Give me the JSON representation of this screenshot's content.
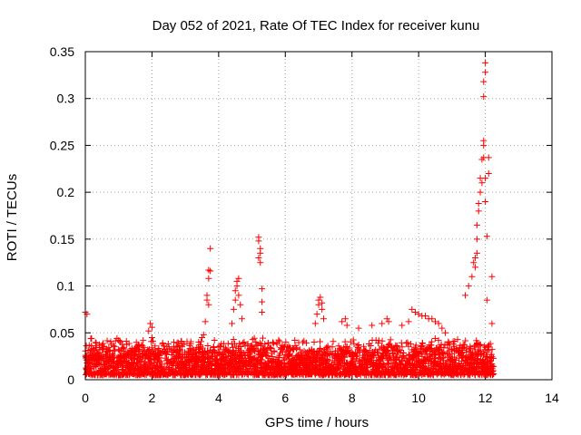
{
  "chart_data": {
    "type": "scatter",
    "title": "Day 052 of 2021, Rate Of TEC Index for receiver kunu",
    "xlabel": "GPS time / hours",
    "ylabel": "ROTI / TECUs",
    "xlim": [
      0,
      14
    ],
    "ylim": [
      0,
      0.35
    ],
    "x_ticks": [
      "0",
      "2",
      "4",
      "6",
      "8",
      "10",
      "12",
      "14"
    ],
    "y_ticks": [
      "0",
      "0.05",
      "0.1",
      "0.15",
      "0.2",
      "0.25",
      "0.3",
      "0.35"
    ],
    "grid": true,
    "marker": "+",
    "marker_color": "#ff0000",
    "x_data_range": [
      0,
      12.25
    ],
    "baseline_band": [
      0.005,
      0.03
    ],
    "series": [
      {
        "points": [
          [
            0.0,
            0.072
          ],
          [
            0.05,
            0.07
          ],
          [
            0.05,
            0.012
          ],
          [
            0.1,
            0.008
          ],
          [
            0.95,
            0.044
          ],
          [
            1.0,
            0.042
          ],
          [
            1.05,
            0.04
          ],
          [
            1.1,
            0.038
          ],
          [
            1.9,
            0.052
          ],
          [
            1.95,
            0.06
          ],
          [
            2.0,
            0.056
          ],
          [
            2.0,
            0.045
          ],
          [
            3.4,
            0.04
          ],
          [
            3.5,
            0.045
          ],
          [
            3.55,
            0.048
          ],
          [
            3.6,
            0.062
          ],
          [
            3.65,
            0.085
          ],
          [
            3.65,
            0.09
          ],
          [
            3.7,
            0.108
          ],
          [
            3.7,
            0.117
          ],
          [
            3.75,
            0.116
          ],
          [
            3.75,
            0.14
          ],
          [
            3.7,
            0.08
          ],
          [
            4.4,
            0.06
          ],
          [
            4.45,
            0.075
          ],
          [
            4.5,
            0.085
          ],
          [
            4.5,
            0.095
          ],
          [
            4.55,
            0.1
          ],
          [
            4.55,
            0.105
          ],
          [
            4.6,
            0.108
          ],
          [
            4.6,
            0.09
          ],
          [
            4.65,
            0.08
          ],
          [
            4.7,
            0.065
          ],
          [
            5.2,
            0.152
          ],
          [
            5.2,
            0.148
          ],
          [
            5.25,
            0.14
          ],
          [
            5.25,
            0.135
          ],
          [
            5.2,
            0.13
          ],
          [
            5.25,
            0.125
          ],
          [
            5.3,
            0.097
          ],
          [
            5.3,
            0.083
          ],
          [
            5.3,
            0.072
          ],
          [
            6.9,
            0.06
          ],
          [
            6.95,
            0.07
          ],
          [
            7.0,
            0.08
          ],
          [
            7.0,
            0.085
          ],
          [
            7.05,
            0.088
          ],
          [
            7.1,
            0.082
          ],
          [
            7.1,
            0.075
          ],
          [
            7.15,
            0.065
          ],
          [
            7.7,
            0.062
          ],
          [
            7.8,
            0.065
          ],
          [
            7.85,
            0.058
          ],
          [
            8.2,
            0.055
          ],
          [
            8.6,
            0.058
          ],
          [
            8.9,
            0.06
          ],
          [
            9.05,
            0.065
          ],
          [
            9.1,
            0.062
          ],
          [
            9.5,
            0.058
          ],
          [
            9.7,
            0.062
          ],
          [
            9.8,
            0.075
          ],
          [
            9.9,
            0.072
          ],
          [
            10.0,
            0.07
          ],
          [
            10.1,
            0.068
          ],
          [
            10.2,
            0.068
          ],
          [
            10.3,
            0.065
          ],
          [
            10.4,
            0.065
          ],
          [
            10.5,
            0.062
          ],
          [
            10.6,
            0.06
          ],
          [
            10.7,
            0.055
          ],
          [
            10.8,
            0.05
          ],
          [
            11.4,
            0.09
          ],
          [
            11.5,
            0.1
          ],
          [
            11.6,
            0.11
          ],
          [
            11.65,
            0.125
          ],
          [
            11.7,
            0.13
          ],
          [
            11.75,
            0.135
          ],
          [
            11.7,
            0.12
          ],
          [
            11.75,
            0.15
          ],
          [
            11.75,
            0.165
          ],
          [
            11.8,
            0.18
          ],
          [
            11.8,
            0.188
          ],
          [
            11.85,
            0.2
          ],
          [
            11.85,
            0.215
          ],
          [
            11.9,
            0.235
          ],
          [
            11.9,
            0.21
          ],
          [
            11.95,
            0.25
          ],
          [
            11.95,
            0.255
          ],
          [
            11.95,
            0.237
          ],
          [
            12.0,
            0.215
          ],
          [
            12.0,
            0.19
          ],
          [
            11.95,
            0.302
          ],
          [
            11.95,
            0.318
          ],
          [
            12.0,
            0.328
          ],
          [
            12.0,
            0.338
          ],
          [
            12.05,
            0.153
          ],
          [
            12.05,
            0.085
          ],
          [
            12.1,
            0.22
          ],
          [
            12.1,
            0.237
          ],
          [
            12.2,
            0.11
          ],
          [
            12.2,
            0.06
          ]
        ]
      }
    ]
  }
}
